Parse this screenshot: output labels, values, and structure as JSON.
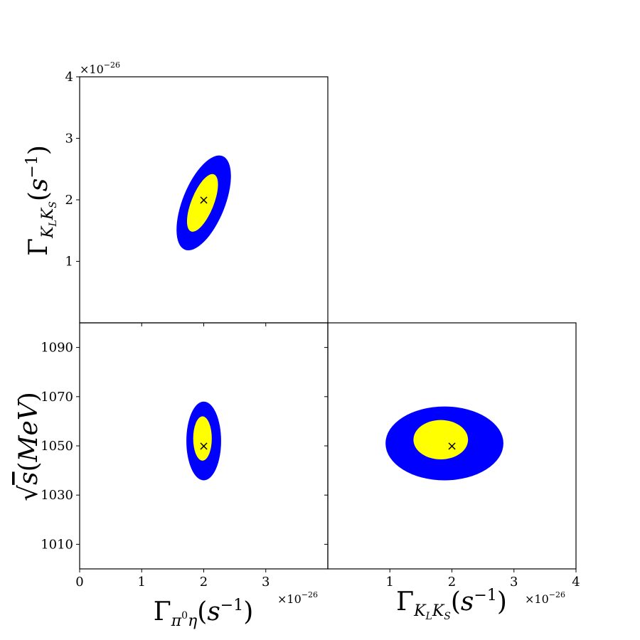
{
  "chart_data": [
    {
      "type": "contour",
      "panel": "top-left",
      "xlim": [
        0,
        4
      ],
      "ylim": [
        0,
        4
      ],
      "x_ticks": [
        1,
        2,
        3
      ],
      "y_ticks": [
        1,
        2,
        3,
        4
      ],
      "y_tick_labels": [
        "1",
        "2",
        "3",
        "4"
      ],
      "ylabel": "Γ_{K_L K_S}(s^{-1})",
      "y_multiplier": "×10^{-26}",
      "regions": [
        {
          "color": "#0000ff",
          "center": [
            2.0,
            1.95
          ],
          "width": 0.34,
          "height": 0.82,
          "tilt_deg": -68
        },
        {
          "color": "#ffff00",
          "center": [
            1.98,
            1.95
          ],
          "width": 0.18,
          "height": 0.5,
          "tilt_deg": -68
        }
      ],
      "marker": {
        "symbol": "×",
        "x": 2.0,
        "y": 2.0
      }
    },
    {
      "type": "contour",
      "panel": "bottom-left",
      "xlim": [
        0,
        4
      ],
      "ylim": [
        1000,
        1100
      ],
      "x_ticks": [
        0,
        1,
        2,
        3
      ],
      "x_tick_labels": [
        "0",
        "1",
        "2",
        "3"
      ],
      "y_ticks": [
        1010,
        1030,
        1050,
        1070,
        1090
      ],
      "y_tick_labels": [
        "1010",
        "1030",
        "1050",
        "1070",
        "1090"
      ],
      "xlabel": "Γ_{π^0 η}(s^{-1})",
      "ylabel": "√s(MeV)",
      "x_multiplier": "×10^{-26}",
      "regions": [
        {
          "color": "#0000ff",
          "center": [
            2.0,
            1052
          ],
          "width": 0.28,
          "height": 16
        },
        {
          "color": "#ffff00",
          "center": [
            1.98,
            1053
          ],
          "width": 0.15,
          "height": 9
        }
      ],
      "marker": {
        "symbol": "×",
        "x": 2.0,
        "y": 1050
      }
    },
    {
      "type": "contour",
      "panel": "bottom-right",
      "xlim": [
        0,
        4
      ],
      "ylim": [
        1000,
        1100
      ],
      "x_ticks": [
        1,
        2,
        3,
        4
      ],
      "x_tick_labels": [
        "1",
        "2",
        "3",
        "4"
      ],
      "y_ticks": [
        1010,
        1030,
        1050,
        1070,
        1090
      ],
      "xlabel": "Γ_{K_L K_S}(s^{-1})",
      "x_multiplier": "×10^{-26}",
      "regions": [
        {
          "color": "#0000ff",
          "center": [
            1.88,
            1051
          ],
          "width": 0.95,
          "height": 15
        },
        {
          "color": "#ffff00",
          "center": [
            1.82,
            1052.5
          ],
          "width": 0.44,
          "height": 8
        }
      ],
      "marker": {
        "symbol": "×",
        "x": 2.0,
        "y": 1050
      }
    }
  ]
}
